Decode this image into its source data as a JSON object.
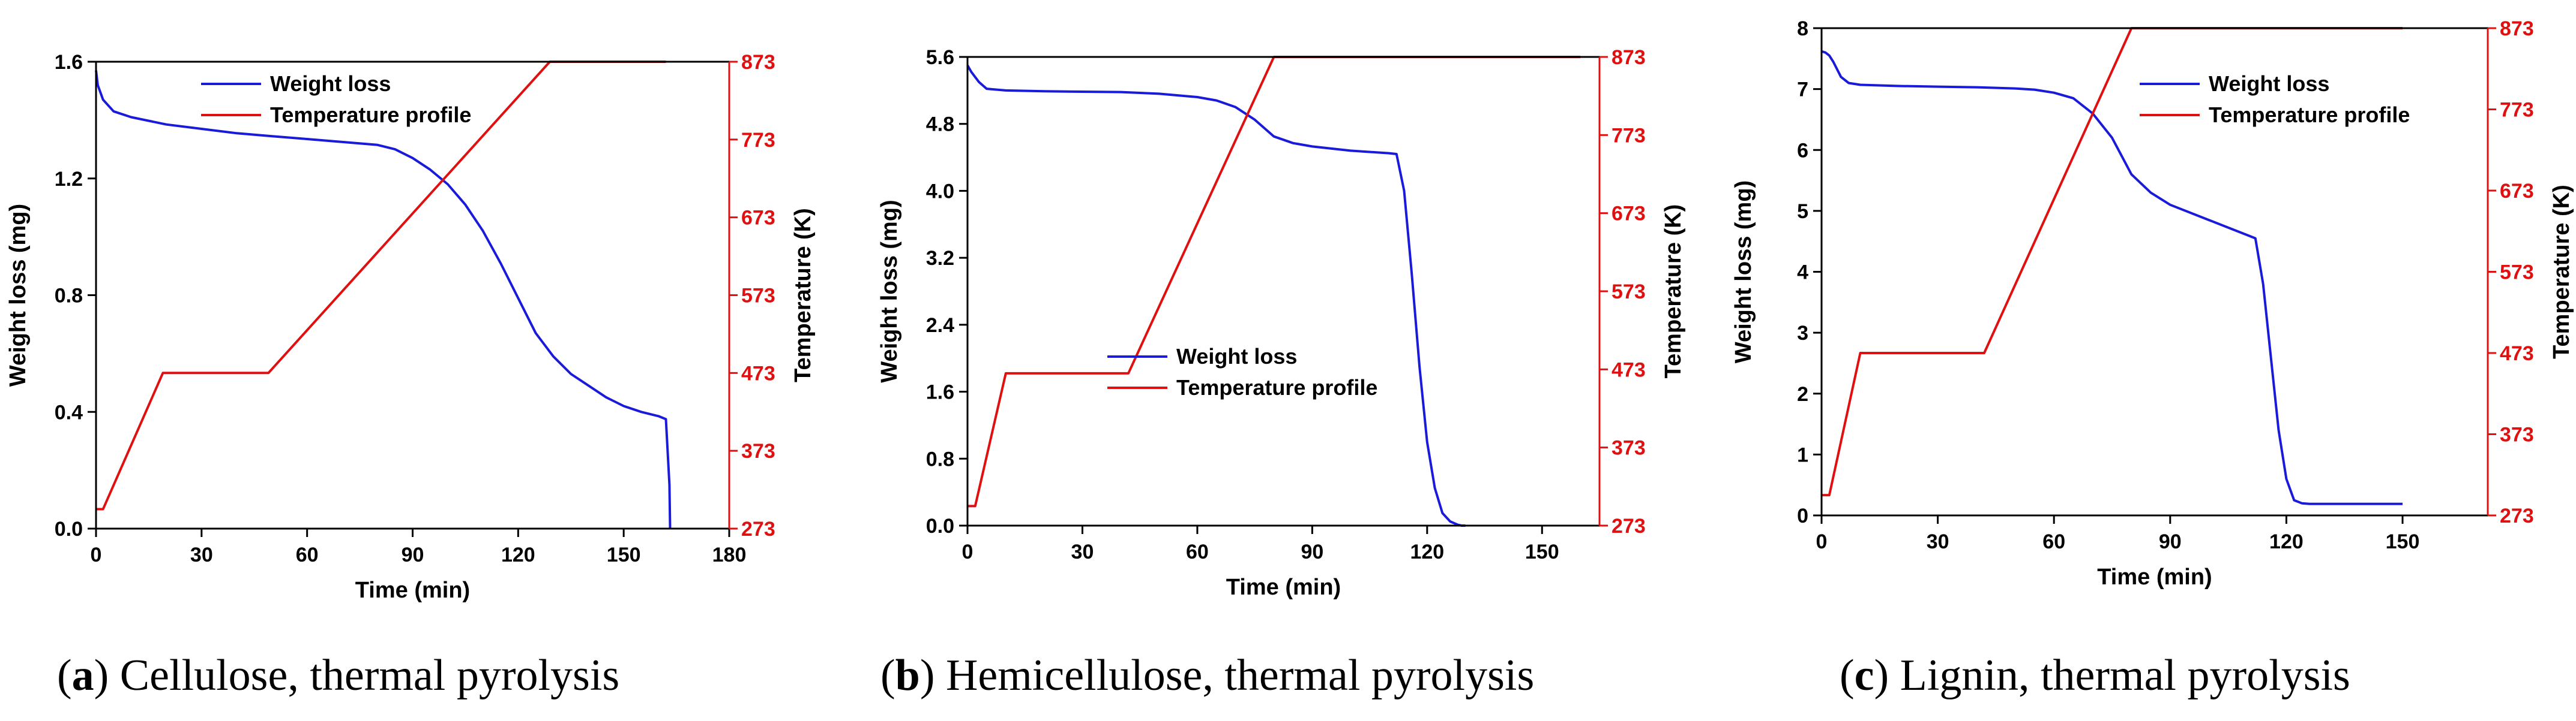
{
  "colors": {
    "weight_loss": "#1a1adb",
    "temperature": "#e01010",
    "axis": "#000000",
    "temp_axis": "#e01010"
  },
  "chart_data": [
    {
      "type": "line",
      "panel_letter": "a",
      "caption": ") Cellulose, thermal pyrolysis",
      "xlabel": "Time (min)",
      "ylabel": "Weight loss (mg)",
      "y2label": "Temperature (K)",
      "xlim": [
        0,
        180
      ],
      "ylim": [
        0,
        1.6
      ],
      "y2lim": [
        273,
        873
      ],
      "xticks": [
        0,
        30,
        60,
        90,
        120,
        150,
        180
      ],
      "yticks": [
        0.0,
        0.4,
        0.8,
        1.2,
        1.6
      ],
      "ytick_labels": [
        "0.0",
        "0.4",
        "0.8",
        "1.2",
        "1.6"
      ],
      "y2ticks": [
        273,
        373,
        473,
        573,
        673,
        773,
        873
      ],
      "legend": {
        "placement": "top-left",
        "items": [
          "Weight loss",
          "Temperature profile"
        ]
      },
      "series": [
        {
          "name": "Weight loss",
          "axis": "left",
          "x": [
            0,
            0.5,
            2,
            5,
            10,
            20,
            30,
            40,
            50,
            60,
            70,
            80,
            85,
            90,
            95,
            100,
            105,
            110,
            115,
            120,
            125,
            130,
            135,
            140,
            145,
            150,
            155,
            160,
            162,
            163,
            163.2
          ],
          "y": [
            1.57,
            1.52,
            1.47,
            1.43,
            1.41,
            1.385,
            1.37,
            1.355,
            1.345,
            1.335,
            1.325,
            1.315,
            1.3,
            1.27,
            1.23,
            1.18,
            1.11,
            1.02,
            0.91,
            0.79,
            0.67,
            0.59,
            0.53,
            0.49,
            0.45,
            0.42,
            0.4,
            0.385,
            0.375,
            0.15,
            0.0
          ]
        },
        {
          "name": "Temperature profile",
          "axis": "right",
          "x": [
            0,
            2,
            19,
            49,
            129,
            162
          ],
          "y": [
            298,
            298,
            473,
            473,
            873,
            873
          ]
        }
      ]
    },
    {
      "type": "line",
      "panel_letter": "b",
      "caption": ") Hemicellulose, thermal pyrolysis",
      "xlabel": "Time (min)",
      "ylabel": "Weight loss (mg)",
      "y2label": "Temperature (K)",
      "xlim": [
        0,
        165
      ],
      "ylim": [
        0,
        5.6
      ],
      "y2lim": [
        273,
        873
      ],
      "xticks": [
        0,
        30,
        60,
        90,
        120,
        150
      ],
      "yticks": [
        0.0,
        0.8,
        1.6,
        2.4,
        3.2,
        4.0,
        4.8,
        5.6
      ],
      "ytick_labels": [
        "0.0",
        "0.8",
        "1.6",
        "2.4",
        "3.2",
        "4.0",
        "4.8",
        "5.6"
      ],
      "y2ticks": [
        273,
        373,
        473,
        573,
        673,
        773,
        873
      ],
      "legend": {
        "placement": "center",
        "items": [
          "Weight loss",
          "Temperature profile"
        ]
      },
      "series": [
        {
          "name": "Weight loss",
          "axis": "left",
          "x": [
            0,
            1,
            3,
            5,
            10,
            20,
            30,
            40,
            50,
            60,
            65,
            70,
            75,
            80,
            85,
            90,
            100,
            110,
            112,
            114,
            116,
            118,
            120,
            122,
            124,
            126,
            128,
            129,
            130
          ],
          "y": [
            5.5,
            5.42,
            5.3,
            5.22,
            5.2,
            5.19,
            5.185,
            5.18,
            5.16,
            5.12,
            5.08,
            5.0,
            4.85,
            4.65,
            4.57,
            4.53,
            4.48,
            4.45,
            4.44,
            4.0,
            3.0,
            1.9,
            1.0,
            0.45,
            0.15,
            0.05,
            0.01,
            0.0,
            0.0
          ]
        },
        {
          "name": "Temperature profile",
          "axis": "right",
          "x": [
            0,
            2,
            10,
            42,
            80,
            160
          ],
          "y": [
            298,
            298,
            468,
            468,
            873,
            873
          ]
        }
      ]
    },
    {
      "type": "line",
      "panel_letter": "c",
      "caption": ") Lignin, thermal pyrolysis",
      "xlabel": "Time (min)",
      "ylabel": "Weight loss (mg)",
      "y2label": "Temperature (K)",
      "xlim": [
        0,
        172
      ],
      "ylim": [
        0,
        8
      ],
      "y2lim": [
        273,
        873
      ],
      "xticks": [
        0,
        30,
        60,
        90,
        120,
        150
      ],
      "yticks": [
        0,
        1,
        2,
        3,
        4,
        5,
        6,
        7,
        8
      ],
      "ytick_labels": [
        "0",
        "1",
        "2",
        "3",
        "4",
        "5",
        "6",
        "7",
        "8"
      ],
      "y2ticks": [
        273,
        373,
        473,
        573,
        673,
        773,
        873
      ],
      "legend": {
        "placement": "top-right",
        "items": [
          "Weight loss",
          "Temperature profile"
        ]
      },
      "series": [
        {
          "name": "Weight loss",
          "axis": "left",
          "x": [
            0,
            1,
            2,
            3,
            5,
            7,
            10,
            20,
            30,
            40,
            50,
            55,
            60,
            65,
            70,
            75,
            80,
            85,
            90,
            100,
            110,
            112,
            114,
            116,
            118,
            120,
            122,
            124,
            126,
            130,
            140,
            150
          ],
          "y": [
            7.62,
            7.6,
            7.55,
            7.45,
            7.2,
            7.1,
            7.07,
            7.05,
            7.04,
            7.03,
            7.01,
            6.99,
            6.94,
            6.85,
            6.6,
            6.2,
            5.6,
            5.3,
            5.1,
            4.85,
            4.6,
            4.55,
            3.8,
            2.6,
            1.4,
            0.6,
            0.25,
            0.2,
            0.19,
            0.19,
            0.19,
            0.19
          ]
        },
        {
          "name": "Temperature profile",
          "axis": "right",
          "x": [
            0,
            2,
            10,
            42,
            80,
            150
          ],
          "y": [
            298,
            298,
            473,
            473,
            873,
            873
          ]
        }
      ]
    }
  ]
}
